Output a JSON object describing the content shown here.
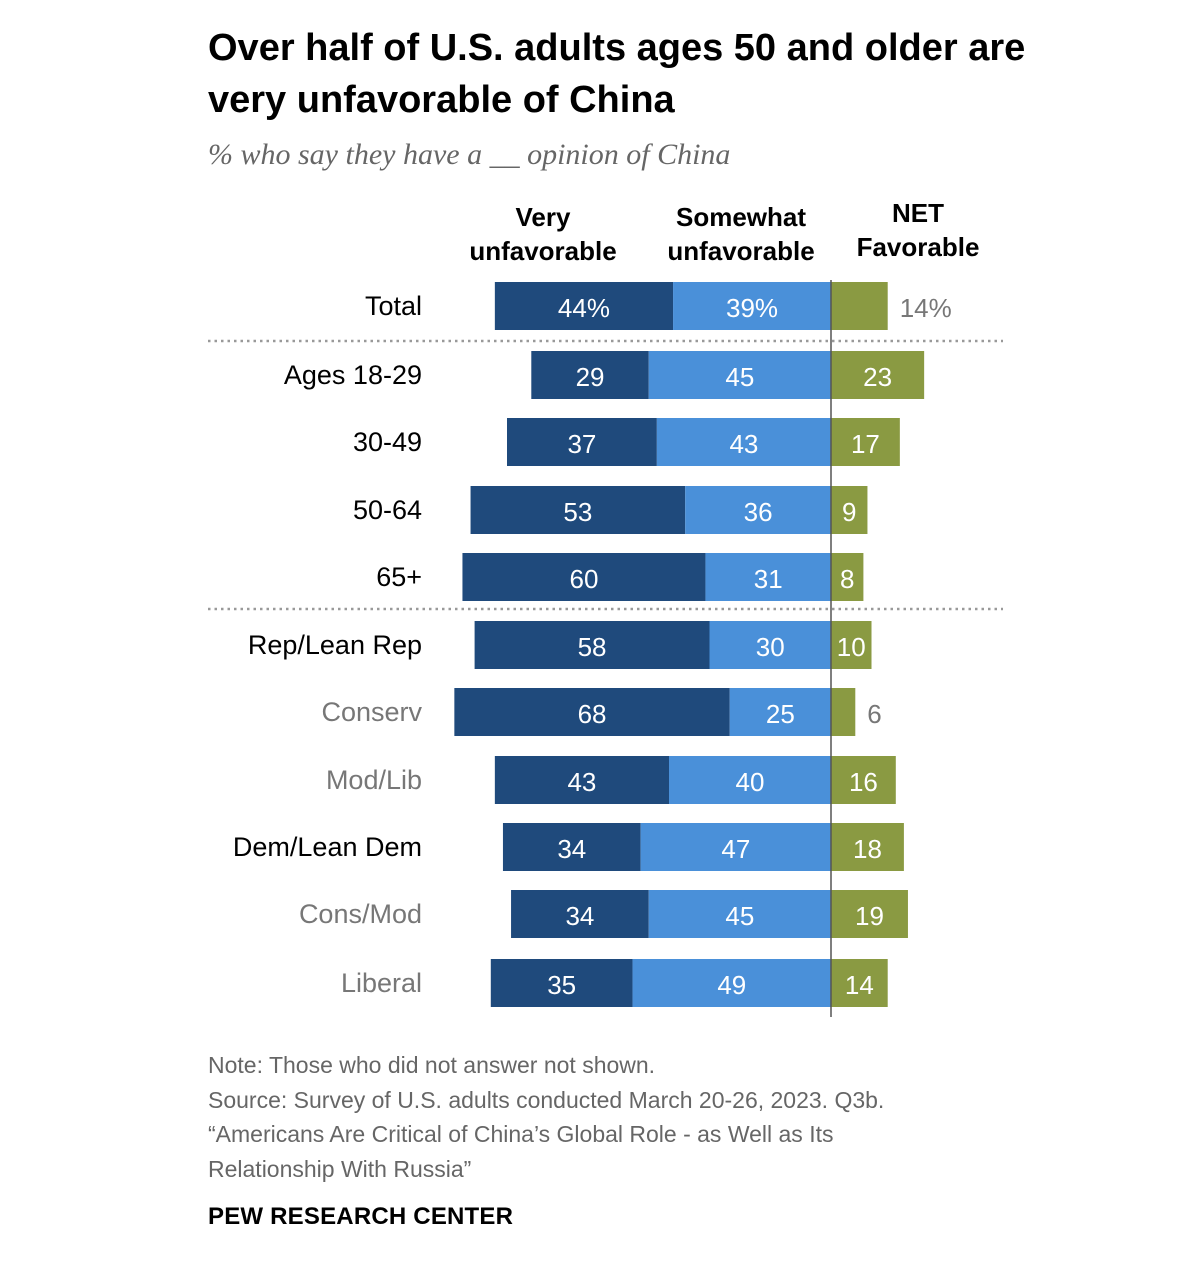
{
  "title": "Over half of U.S. adults ages 50 and older are very unfavorable of China",
  "subtitle": "% who say they have a __ opinion of China",
  "column_headers": {
    "very": [
      "Very",
      "unfavorable"
    ],
    "somewhat": [
      "Somewhat",
      "unfavorable"
    ],
    "net": [
      "NET",
      "Favorable"
    ]
  },
  "colors": {
    "very": "#1f4a7c",
    "somewhat": "#4a90d9",
    "net": "#8a9a42",
    "dark_label": "#000000",
    "sub_label": "#777777",
    "separator": "#999999"
  },
  "chart_data": {
    "type": "bar",
    "orientation": "horizontal-diverging",
    "series": [
      {
        "name": "Very unfavorable",
        "values": [
          44,
          29,
          37,
          53,
          60,
          58,
          68,
          43,
          34,
          34,
          35
        ]
      },
      {
        "name": "Somewhat unfavorable",
        "values": [
          39,
          45,
          43,
          36,
          31,
          30,
          25,
          40,
          47,
          45,
          49
        ]
      },
      {
        "name": "NET Favorable",
        "values": [
          14,
          23,
          17,
          9,
          8,
          10,
          6,
          16,
          18,
          19,
          14
        ]
      }
    ],
    "categories": [
      "Total",
      "Ages 18-29",
      "30-49",
      "50-64",
      "65+",
      "Rep/Lean Rep",
      "Conserv",
      "Mod/Lib",
      "Dem/Lean Dem",
      "Cons/Mod",
      "Liberal"
    ],
    "category_style": [
      "main",
      "main",
      "main",
      "main",
      "main",
      "main",
      "sub",
      "sub",
      "main",
      "sub",
      "sub"
    ],
    "labels": {
      "very": [
        "44%",
        "29",
        "37",
        "53",
        "60",
        "58",
        "68",
        "43",
        "34",
        "34",
        "35"
      ],
      "somewhat": [
        "39%",
        "45",
        "43",
        "36",
        "31",
        "30",
        "25",
        "40",
        "47",
        "45",
        "49"
      ],
      "net": [
        "14%",
        "23",
        "17",
        "9",
        "8",
        "10",
        "6",
        "16",
        "18",
        "19",
        "14"
      ]
    },
    "separators_after": [
      "Total",
      "65+"
    ]
  },
  "notes": [
    "Note: Those who did not answer not shown.",
    "Source: Survey of U.S. adults conducted March 20-26, 2023. Q3b.",
    "“Americans Are Critical of China’s Global Role - as Well as Its",
    "Relationship With Russia”"
  ],
  "source_brand": "PEW RESEARCH CENTER"
}
